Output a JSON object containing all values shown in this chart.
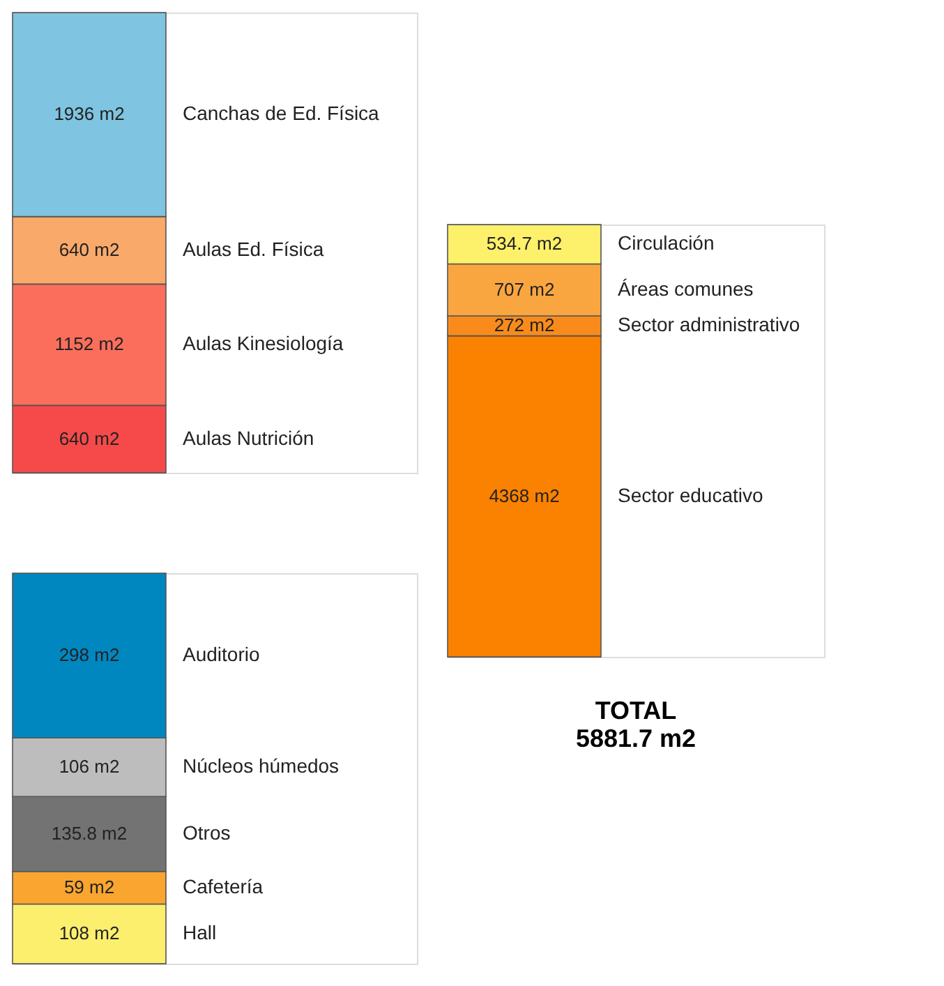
{
  "chart_data": [
    {
      "type": "bar",
      "stacked": true,
      "categories": [
        null
      ],
      "legend": false,
      "tick_labels": false,
      "series": [
        {
          "name": "Aulas Nutrición",
          "color": "#f64a4a",
          "values": [
            640
          ],
          "value_labels": [
            "640 m2"
          ]
        },
        {
          "name": "Aulas Kinesiología",
          "color": "#fb6e5c",
          "values": [
            1152
          ],
          "value_labels": [
            "1152 m2"
          ]
        },
        {
          "name": "Aulas Ed. Física",
          "color": "#f9a96a",
          "values": [
            640
          ],
          "value_labels": [
            "640 m2"
          ]
        },
        {
          "name": "Canchas de Ed. Física",
          "color": "#7fc4e0",
          "values": [
            1936
          ],
          "value_labels": [
            "1936 m2"
          ]
        }
      ]
    },
    {
      "type": "bar",
      "stacked": true,
      "categories": [
        null
      ],
      "legend": false,
      "tick_labels": false,
      "series": [
        {
          "name": "Hall",
          "color": "#fdef6e",
          "values": [
            108
          ],
          "value_labels": [
            "108 m2"
          ]
        },
        {
          "name": "Cafetería",
          "color": "#f9a530",
          "values": [
            59
          ],
          "value_labels": [
            "59 m2"
          ]
        },
        {
          "name": "Otros",
          "color": "#737373",
          "values": [
            135.8
          ],
          "value_labels": [
            "135.8 m2"
          ]
        },
        {
          "name": "Núcleos húmedos",
          "color": "#bdbdbd",
          "values": [
            106
          ],
          "value_labels": [
            "106 m2"
          ]
        },
        {
          "name": "Auditorio",
          "color": "#0087c0",
          "values": [
            298
          ],
          "value_labels": [
            "298 m2"
          ]
        }
      ]
    },
    {
      "type": "bar",
      "stacked": true,
      "categories": [
        null
      ],
      "legend": false,
      "tick_labels": false,
      "annotations": [
        "TOTAL",
        "5881.7 m2"
      ],
      "series": [
        {
          "name": "Sector educativo",
          "color": "#fb8100",
          "values": [
            4368
          ],
          "value_labels": [
            "4368 m2"
          ]
        },
        {
          "name": "Sector administrativo",
          "color": "#f98b1c",
          "values": [
            272
          ],
          "value_labels": [
            "272 m2"
          ]
        },
        {
          "name": "Áreas comunes",
          "color": "#f9a640",
          "values": [
            707
          ],
          "value_labels": [
            "707 m2"
          ]
        },
        {
          "name": "Circulación",
          "color": "#fdf06a",
          "values": [
            534.7
          ],
          "value_labels": [
            "534.7 m2"
          ]
        }
      ]
    }
  ]
}
